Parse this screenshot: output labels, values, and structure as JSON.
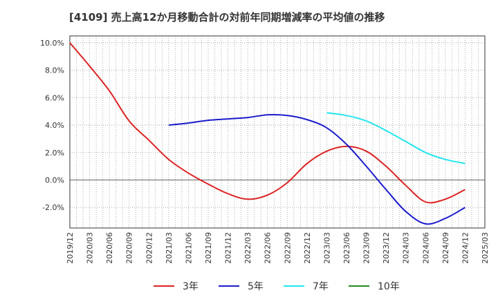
{
  "chart_data": {
    "type": "line",
    "title": "[4109]  売上高12か月移動合計の対前年同期増減率の平均値の推移",
    "xlabel": "",
    "ylabel": "",
    "ylim": [
      -3.5,
      10.5
    ],
    "yticks": [
      10,
      8,
      6,
      4,
      2,
      0,
      -2
    ],
    "ytick_labels": [
      "10.0%",
      "8.0%",
      "6.0%",
      "4.0%",
      "2.0%",
      "0.0%",
      "-2.0%"
    ],
    "xlim": [
      "2019/12",
      "2025/03"
    ],
    "xtick_labels": [
      "2019/12",
      "2020/03",
      "2020/06",
      "2020/09",
      "2020/12",
      "2021/03",
      "2021/06",
      "2021/09",
      "2021/12",
      "2022/03",
      "2022/06",
      "2022/09",
      "2022/12",
      "2023/03",
      "2023/06",
      "2023/09",
      "2023/12",
      "2024/03",
      "2024/06",
      "2024/09",
      "2024/12",
      "2025/03"
    ],
    "grid": true,
    "legend_position": "bottom",
    "series": [
      {
        "name": "3年",
        "color": "#dd2222",
        "points": [
          [
            "2019/12",
            10.0
          ],
          [
            "2020/03",
            8.3
          ],
          [
            "2020/06",
            6.5
          ],
          [
            "2020/09",
            4.3
          ],
          [
            "2020/12",
            2.9
          ],
          [
            "2021/03",
            1.5
          ],
          [
            "2021/06",
            0.5
          ],
          [
            "2021/09",
            -0.3
          ],
          [
            "2021/12",
            -1.0
          ],
          [
            "2022/03",
            -1.4
          ],
          [
            "2022/06",
            -1.1
          ],
          [
            "2022/09",
            -0.2
          ],
          [
            "2022/12",
            1.2
          ],
          [
            "2023/03",
            2.1
          ],
          [
            "2023/06",
            2.45
          ],
          [
            "2023/09",
            2.1
          ],
          [
            "2023/12",
            1.0
          ],
          [
            "2024/03",
            -0.4
          ],
          [
            "2024/06",
            -1.6
          ],
          [
            "2024/09",
            -1.4
          ],
          [
            "2024/12",
            -0.7
          ]
        ]
      },
      {
        "name": "5年",
        "color": "#1a1acc",
        "points": [
          [
            "2021/03",
            4.0
          ],
          [
            "2021/06",
            4.15
          ],
          [
            "2021/09",
            4.35
          ],
          [
            "2021/12",
            4.45
          ],
          [
            "2022/03",
            4.55
          ],
          [
            "2022/06",
            4.75
          ],
          [
            "2022/09",
            4.7
          ],
          [
            "2022/12",
            4.4
          ],
          [
            "2023/03",
            3.8
          ],
          [
            "2023/06",
            2.6
          ],
          [
            "2023/09",
            1.0
          ],
          [
            "2023/12",
            -0.7
          ],
          [
            "2024/03",
            -2.3
          ],
          [
            "2024/06",
            -3.2
          ],
          [
            "2024/09",
            -2.8
          ],
          [
            "2024/12",
            -2.0
          ]
        ]
      },
      {
        "name": "7年",
        "color": "#22e5ee",
        "points": [
          [
            "2023/03",
            4.9
          ],
          [
            "2023/06",
            4.7
          ],
          [
            "2023/09",
            4.3
          ],
          [
            "2023/12",
            3.6
          ],
          [
            "2024/03",
            2.8
          ],
          [
            "2024/06",
            2.0
          ],
          [
            "2024/09",
            1.5
          ],
          [
            "2024/12",
            1.2
          ]
        ]
      },
      {
        "name": "10年",
        "color": "#228b22",
        "points": []
      }
    ]
  }
}
